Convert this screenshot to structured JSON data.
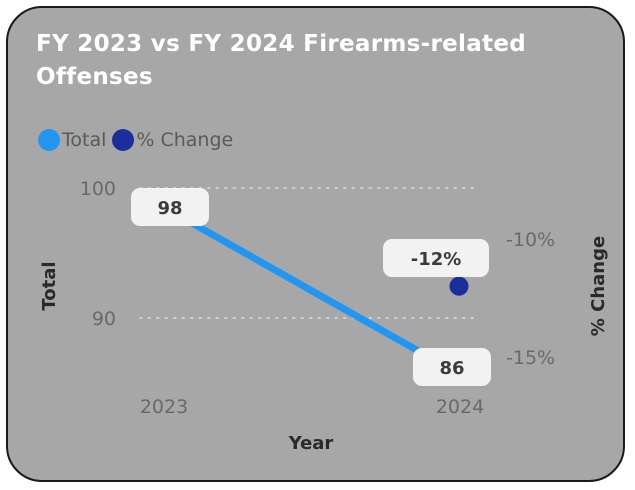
{
  "colors": {
    "card_bg": "#a7a7a7",
    "total_series": "#2196f3",
    "change_series": "#1a2f9c",
    "label_box": "#f2f2f2"
  },
  "chart_data": {
    "type": "line",
    "title": "FY 2023 vs FY 2024 Firearms-related Offenses",
    "xlabel": "Year",
    "ylabel": "Total",
    "y2label": "% Change",
    "categories": [
      "2023",
      "2024"
    ],
    "legend_position": "top-left",
    "grid": true,
    "series": [
      {
        "name": "Total",
        "kind": "line",
        "axis": "left",
        "color": "#2196f3",
        "values": [
          98,
          86
        ],
        "labels": [
          "98",
          "86"
        ]
      },
      {
        "name": "% Change",
        "kind": "scatter",
        "axis": "right",
        "color": "#1a2f9c",
        "values": [
          null,
          -12
        ],
        "labels": [
          null,
          "-12%"
        ]
      }
    ],
    "y_axis": {
      "ticks": [
        90,
        100
      ],
      "tick_labels": [
        "90",
        "100"
      ]
    },
    "y2_axis": {
      "ticks": [
        -10,
        -15
      ],
      "tick_labels": [
        "-10%",
        "-15%"
      ]
    }
  }
}
